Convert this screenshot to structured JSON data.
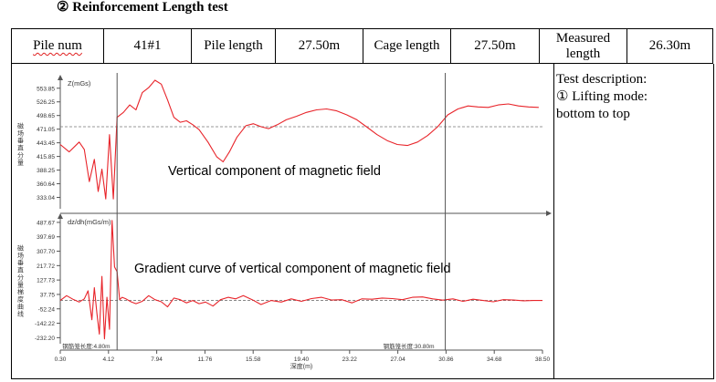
{
  "title": "② Reinforcement Length test",
  "info": {
    "pile_num_label": "Pile num",
    "pile_num_value": "41#1",
    "pile_length_label": "Pile length",
    "pile_length_value": "27.50m",
    "cage_length_label": "Cage length",
    "cage_length_value": "27.50m",
    "measured_length_label": "Measured length",
    "measured_length_value": "26.30m"
  },
  "description": {
    "heading": "Test description:",
    "line1": "① Lifting mode:",
    "line2": "bottom to top"
  },
  "chart": {
    "top_annotation": "Vertical component of magnetic field",
    "bottom_annotation": "Gradient curve of vertical component of magnetic field",
    "top_panel_label": "Z(mGs)",
    "bottom_panel_label": "dz/dh(mGs/m)",
    "top_axis_title": "磁场垂直分量",
    "bottom_axis_title": "磁场垂直分量梯度曲线",
    "x_axis_title": "深度(m)",
    "cage_start_label": "钢筋笼长度:4.80m",
    "cage_end_label": "钢筋笼长度:30.80m",
    "color_curve": "#e8242a",
    "color_axis": "#555555"
  },
  "chart_data": [
    {
      "type": "line",
      "title": "Vertical component of magnetic field",
      "ylabel": "Z(mGs)",
      "xlabel": "深度(m)",
      "x_ticks": [
        "0.30",
        "4.12",
        "7.94",
        "11.76",
        "15.58",
        "19.40",
        "23.22",
        "27.04",
        "30.86",
        "34.68",
        "38.50"
      ],
      "y_ticks": [
        "553.85",
        "526.25",
        "498.65",
        "471.05",
        "443.45",
        "415.85",
        "388.25",
        "360.64",
        "333.04"
      ],
      "xlim": [
        0.3,
        38.5
      ],
      "ylim": [
        310,
        570
      ],
      "reference_line": 476,
      "markers": [
        4.8,
        30.8
      ],
      "series": [
        {
          "x": [
            0.3,
            1.0,
            1.8,
            2.2,
            2.6,
            3.0,
            3.3,
            3.6,
            3.9,
            4.2,
            4.5,
            4.8,
            5.3,
            5.8,
            6.3,
            6.8,
            7.3,
            7.8,
            8.3,
            8.8,
            9.3,
            9.8,
            10.3,
            10.8,
            11.3,
            12.0,
            12.7,
            13.2,
            13.7,
            14.3,
            15.0,
            15.6,
            16.2,
            16.8,
            17.5,
            18.2,
            19.0,
            19.8,
            20.6,
            21.4,
            22.2,
            23.0,
            23.8,
            24.6,
            25.4,
            26.2,
            27.0,
            27.8,
            28.6,
            29.4,
            30.2,
            31.0,
            31.8,
            32.6,
            33.4,
            34.2,
            35.0,
            35.8,
            36.6,
            37.4,
            38.2
          ],
          "values": [
            440,
            425,
            445,
            430,
            365,
            410,
            345,
            390,
            330,
            460,
            330,
            495,
            505,
            520,
            510,
            545,
            555,
            570,
            562,
            530,
            495,
            485,
            488,
            480,
            470,
            445,
            415,
            405,
            425,
            455,
            478,
            482,
            476,
            472,
            480,
            490,
            497,
            505,
            510,
            512,
            508,
            500,
            490,
            475,
            460,
            448,
            440,
            438,
            445,
            458,
            476,
            500,
            512,
            518,
            516,
            515,
            520,
            522,
            518,
            516,
            515
          ]
        }
      ]
    },
    {
      "type": "line",
      "title": "Gradient curve of vertical component of magnetic field",
      "ylabel": "dz/dh(mGs/m)",
      "xlabel": "深度(m)",
      "x_ticks": [
        "0.30",
        "4.12",
        "7.94",
        "11.76",
        "15.58",
        "19.40",
        "23.22",
        "27.04",
        "30.86",
        "34.68",
        "38.50"
      ],
      "y_ticks": [
        "487.67",
        "397.69",
        "307.70",
        "217.72",
        "127.73",
        "37.75",
        "-52.24",
        "-142.22",
        "-232.20"
      ],
      "xlim": [
        0.3,
        38.5
      ],
      "ylim": [
        -270,
        510
      ],
      "reference_line": 0,
      "markers": [
        4.8,
        30.8
      ],
      "series": [
        {
          "x": [
            0.3,
            0.8,
            1.3,
            1.8,
            2.2,
            2.5,
            2.8,
            3.0,
            3.2,
            3.4,
            3.6,
            3.8,
            4.0,
            4.2,
            4.4,
            4.6,
            4.8,
            5.0,
            5.2,
            5.5,
            5.9,
            6.3,
            6.8,
            7.3,
            7.8,
            8.3,
            8.8,
            9.3,
            9.8,
            10.3,
            10.8,
            11.3,
            11.8,
            12.4,
            13.0,
            13.6,
            14.2,
            14.8,
            15.5,
            16.2,
            17.0,
            17.8,
            18.6,
            19.4,
            20.2,
            21.0,
            21.8,
            22.6,
            23.4,
            24.2,
            25.0,
            25.8,
            26.6,
            27.4,
            28.2,
            29.0,
            29.8,
            30.6,
            31.4,
            32.2,
            33.0,
            33.8,
            34.6,
            35.4,
            36.2,
            37.0,
            37.8,
            38.5
          ],
          "values": [
            0,
            30,
            8,
            -10,
            10,
            60,
            -120,
            80,
            -80,
            -210,
            150,
            -240,
            20,
            -180,
            500,
            210,
            180,
            5,
            20,
            10,
            -8,
            -20,
            -5,
            30,
            5,
            -8,
            -40,
            15,
            5,
            -15,
            0,
            -20,
            -10,
            -35,
            5,
            20,
            10,
            30,
            5,
            -25,
            0,
            -10,
            10,
            -5,
            12,
            20,
            3,
            5,
            -15,
            10,
            8,
            15,
            12,
            5,
            20,
            22,
            10,
            2,
            10,
            -5,
            8,
            0,
            -8,
            5,
            3,
            -2,
            0,
            0
          ]
        }
      ]
    }
  ]
}
